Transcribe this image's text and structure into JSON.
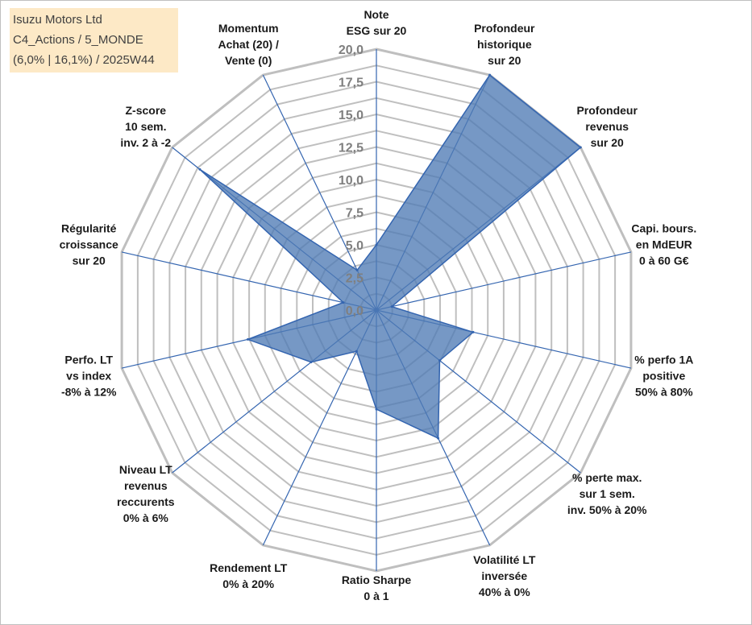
{
  "info": {
    "line1": "Isuzu Motors Ltd",
    "line2": "C4_Actions / 5_MONDE",
    "line3": "(6,0% | 16,1%) / 2025W44"
  },
  "chart_data": {
    "type": "radar",
    "rmin": 0,
    "rmax": 20,
    "ticks": [
      "0,0",
      "2,5",
      "5,0",
      "7,5",
      "10,0",
      "12,5",
      "15,0",
      "17,5",
      "20,0"
    ],
    "colors": {
      "fill": "#4f7bb5",
      "grid": "#bfbfbf",
      "spoke": "#3465b0"
    },
    "axes": [
      {
        "label": [
          "Note",
          "ESG sur 20"
        ],
        "value": 5.0
      },
      {
        "label": [
          "Profondeur",
          "historique",
          "sur 20"
        ],
        "value": 20.0
      },
      {
        "label": [
          "Profondeur",
          "revenus",
          "sur 20"
        ],
        "value": 20.0
      },
      {
        "label": [
          "Capi. bours.",
          "en MdEUR",
          "0 à 60 G€"
        ],
        "value": 1.2
      },
      {
        "label": [
          "% perfo 1A",
          "positive",
          "50% à 80%"
        ],
        "value": 7.6
      },
      {
        "label": [
          "% perte max.",
          "sur 1 sem.",
          "inv. 50% à 20%"
        ],
        "value": 6.2
      },
      {
        "label": [
          "Volatilité LT",
          "inversée",
          "40% à 0%"
        ],
        "value": 10.9
      },
      {
        "label": [
          "Ratio Sharpe",
          "0 à 1"
        ],
        "value": 7.6
      },
      {
        "label": [
          "Rendement LT",
          "0% à 20%"
        ],
        "value": 3.5
      },
      {
        "label": [
          "Niveau LT",
          "revenus",
          "reccurents",
          "0% à 6%"
        ],
        "value": 6.4
      },
      {
        "label": [
          "Perfo. LT",
          "vs index",
          "-8% à 12%"
        ],
        "value": 10.1
      },
      {
        "label": [
          "Régularité",
          "croissance",
          "sur 20"
        ],
        "value": 2.6
      },
      {
        "label": [
          "Z-score",
          "10 sem.",
          "inv. 2 à -2"
        ],
        "value": 17.3
      },
      {
        "label": [
          "Momentum",
          "Achat (20) /",
          "Vente (0)"
        ],
        "value": 3.4
      }
    ]
  }
}
